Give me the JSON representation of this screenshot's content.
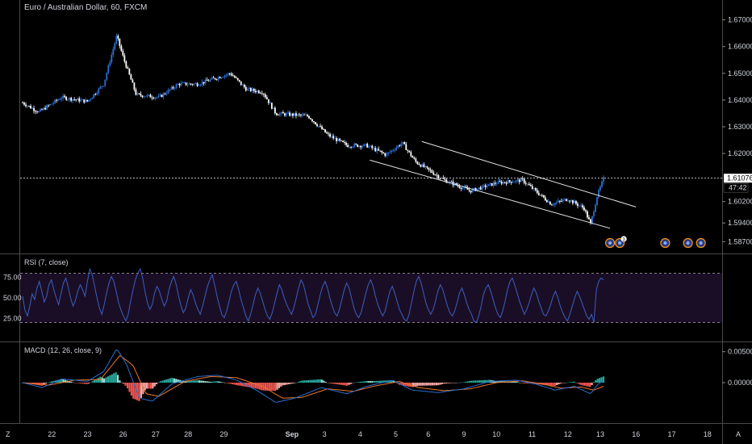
{
  "app": {
    "symbol_title": "Euro / Australian Dollar, 60, FXCM",
    "scale_mark": "Z",
    "auto_mark": "A"
  },
  "colors": {
    "background": "#000000",
    "candle_up": "#2e6fd8",
    "candle_down": "#ffffff",
    "trendline": "#e6e6e6",
    "rsi_line": "#3c5fbf",
    "rsi_band": "#1a0e26",
    "macd_line": "#2a6fd0",
    "signal_line": "#f0782a",
    "hist_pos": "#26a69a",
    "hist_pos_light": "#9be0d5",
    "hist_neg": "#ef5350",
    "hist_neg_light": "#f7a9a6",
    "grid_pane_separator": "#4a4a4a",
    "price_label_bg": "#ffffff"
  },
  "chart_data": [
    {
      "type": "candlestick",
      "name": "price",
      "ylim": [
        1.585,
        1.672
      ],
      "y_ticks": [
        "1.67000",
        "1.66000",
        "1.65000",
        "1.64000",
        "1.63000",
        "1.62000",
        "1.60200",
        "1.59400",
        "1.58700"
      ],
      "current_price": "1.61076",
      "countdown": "47:42",
      "anchors": [
        {
          "t": 0,
          "p": 1.639
        },
        {
          "t": 0.025,
          "p": 1.6355
        },
        {
          "t": 0.06,
          "p": 1.641
        },
        {
          "t": 0.1,
          "p": 1.6395
        },
        {
          "t": 0.125,
          "p": 1.646
        },
        {
          "t": 0.145,
          "p": 1.664
        },
        {
          "t": 0.155,
          "p": 1.656
        },
        {
          "t": 0.175,
          "p": 1.642
        },
        {
          "t": 0.21,
          "p": 1.641
        },
        {
          "t": 0.24,
          "p": 1.646
        },
        {
          "t": 0.27,
          "p": 1.646
        },
        {
          "t": 0.32,
          "p": 1.65
        },
        {
          "t": 0.345,
          "p": 1.644
        },
        {
          "t": 0.37,
          "p": 1.643
        },
        {
          "t": 0.39,
          "p": 1.635
        },
        {
          "t": 0.44,
          "p": 1.634
        },
        {
          "t": 0.47,
          "p": 1.627
        },
        {
          "t": 0.5,
          "p": 1.623
        },
        {
          "t": 0.53,
          "p": 1.623
        },
        {
          "t": 0.56,
          "p": 1.6195
        },
        {
          "t": 0.585,
          "p": 1.624
        },
        {
          "t": 0.605,
          "p": 1.617
        },
        {
          "t": 0.65,
          "p": 1.61
        },
        {
          "t": 0.69,
          "p": 1.606
        },
        {
          "t": 0.73,
          "p": 1.609
        },
        {
          "t": 0.77,
          "p": 1.61
        },
        {
          "t": 0.79,
          "p": 1.606
        },
        {
          "t": 0.815,
          "p": 1.601
        },
        {
          "t": 0.84,
          "p": 1.603
        },
        {
          "t": 0.865,
          "p": 1.5995
        },
        {
          "t": 0.875,
          "p": 1.5935
        },
        {
          "t": 0.885,
          "p": 1.604
        },
        {
          "t": 0.895,
          "p": 1.6105
        }
      ],
      "channel": {
        "upper": [
          [
            0.615,
            1.6245
          ],
          [
            0.945,
            1.6
          ]
        ],
        "lower": [
          [
            0.535,
            1.6175
          ],
          [
            0.905,
            1.592
          ]
        ]
      },
      "events": [
        {
          "t": 0.905,
          "badge": ""
        },
        {
          "t": 0.92,
          "badge": "3"
        },
        {
          "t": 0.99,
          "badge": ""
        },
        {
          "t": 1.025,
          "badge": ""
        },
        {
          "t": 1.045,
          "badge": ""
        }
      ]
    },
    {
      "type": "line",
      "name": "RSI (7, close)",
      "ylim": [
        0,
        100
      ],
      "y_ticks": [
        "75.00",
        "50.00",
        "25.00"
      ],
      "band": [
        20,
        80
      ],
      "series": [
        {
          "name": "RSI (7, close)",
          "values": [
            52,
            35,
            28,
            40,
            55,
            48,
            62,
            70,
            58,
            45,
            52,
            66,
            72,
            60,
            50,
            42,
            55,
            68,
            74,
            63,
            50,
            40,
            47,
            58,
            66,
            60,
            52,
            70,
            85,
            78,
            64,
            50,
            38,
            30,
            42,
            56,
            68,
            76,
            70,
            58,
            44,
            35,
            28,
            22,
            30,
            46,
            60,
            72,
            80,
            85,
            74,
            58,
            44,
            36,
            42,
            56,
            64,
            58,
            48,
            40,
            46,
            60,
            70,
            76,
            66,
            52,
            40,
            32,
            38,
            50,
            60,
            54,
            44,
            36,
            30,
            40,
            52,
            64,
            72,
            78,
            66,
            52,
            40,
            30,
            26,
            34,
            46,
            58,
            66,
            70,
            60,
            48,
            38,
            28,
            22,
            30,
            42,
            54,
            62,
            56,
            46,
            36,
            28,
            24,
            32,
            44,
            56,
            66,
            60,
            50,
            42,
            36,
            30,
            38,
            50,
            62,
            72,
            66,
            54,
            42,
            34,
            26,
            30,
            42,
            54,
            64,
            70,
            62,
            50,
            40,
            32,
            28,
            36,
            48,
            60,
            68,
            62,
            50,
            38,
            30,
            26,
            32,
            44,
            56,
            66,
            72,
            64,
            52,
            42,
            34,
            28,
            34,
            46,
            58,
            64,
            56,
            46,
            36,
            30,
            24,
            22,
            30,
            44,
            58,
            70,
            76,
            68,
            56,
            44,
            36,
            30,
            36,
            46,
            58,
            66,
            60,
            50,
            40,
            32,
            28,
            34,
            44,
            56,
            62,
            54,
            44,
            36,
            30,
            22,
            20,
            28,
            40,
            54,
            62,
            66,
            58,
            48,
            38,
            30,
            26,
            34,
            46,
            60,
            70,
            74,
            66,
            56,
            46,
            38,
            30,
            36,
            44,
            54,
            62,
            56,
            46,
            38,
            30,
            28,
            34,
            42,
            52,
            58,
            50,
            40,
            32,
            26,
            22,
            30,
            40,
            50,
            58,
            52,
            44,
            36,
            28,
            24,
            30,
            20,
            60,
            70,
            74,
            72
          ]
        }
      ]
    },
    {
      "type": "line",
      "name": "MACD (12, 26, close, 9)",
      "ylim": [
        -0.006,
        0.006
      ],
      "y_ticks": [
        "0.00500",
        "0.00000"
      ],
      "series": [
        {
          "name": "MACD",
          "anchors": [
            {
              "t": 0,
              "v": 0.0
            },
            {
              "t": 0.03,
              "v": -0.0008
            },
            {
              "t": 0.06,
              "v": 0.0006
            },
            {
              "t": 0.1,
              "v": 0.0002
            },
            {
              "t": 0.125,
              "v": 0.0018
            },
            {
              "t": 0.145,
              "v": 0.0055
            },
            {
              "t": 0.16,
              "v": 0.003
            },
            {
              "t": 0.18,
              "v": -0.0025
            },
            {
              "t": 0.2,
              "v": -0.003
            },
            {
              "t": 0.23,
              "v": -0.0002
            },
            {
              "t": 0.27,
              "v": 0.001
            },
            {
              "t": 0.3,
              "v": 0.0012
            },
            {
              "t": 0.33,
              "v": 0.0004
            },
            {
              "t": 0.36,
              "v": -0.0012
            },
            {
              "t": 0.39,
              "v": -0.0032
            },
            {
              "t": 0.42,
              "v": -0.0025
            },
            {
              "t": 0.46,
              "v": -0.0008
            },
            {
              "t": 0.5,
              "v": -0.0018
            },
            {
              "t": 0.53,
              "v": -0.0006
            },
            {
              "t": 0.57,
              "v": 0.0004
            },
            {
              "t": 0.6,
              "v": -0.0012
            },
            {
              "t": 0.64,
              "v": -0.0016
            },
            {
              "t": 0.68,
              "v": -0.001
            },
            {
              "t": 0.72,
              "v": 0.0002
            },
            {
              "t": 0.76,
              "v": 0.0004
            },
            {
              "t": 0.79,
              "v": -0.0002
            },
            {
              "t": 0.82,
              "v": -0.0012
            },
            {
              "t": 0.85,
              "v": -0.0006
            },
            {
              "t": 0.875,
              "v": -0.0018
            },
            {
              "t": 0.885,
              "v": -0.0004
            },
            {
              "t": 0.895,
              "v": 0.0004
            }
          ]
        },
        {
          "name": "Signal",
          "anchors": [
            {
              "t": 0,
              "v": 0.0
            },
            {
              "t": 0.04,
              "v": -0.0004
            },
            {
              "t": 0.08,
              "v": 0.0004
            },
            {
              "t": 0.12,
              "v": 0.0005
            },
            {
              "t": 0.15,
              "v": 0.0044
            },
            {
              "t": 0.17,
              "v": 0.0028
            },
            {
              "t": 0.19,
              "v": -0.0018
            },
            {
              "t": 0.21,
              "v": -0.0022
            },
            {
              "t": 0.25,
              "v": 0.0002
            },
            {
              "t": 0.29,
              "v": 0.001
            },
            {
              "t": 0.33,
              "v": 0.0008
            },
            {
              "t": 0.37,
              "v": -0.0006
            },
            {
              "t": 0.4,
              "v": -0.0025
            },
            {
              "t": 0.43,
              "v": -0.0024
            },
            {
              "t": 0.47,
              "v": -0.001
            },
            {
              "t": 0.51,
              "v": -0.0014
            },
            {
              "t": 0.54,
              "v": -0.0006
            },
            {
              "t": 0.58,
              "v": 0.0002
            },
            {
              "t": 0.61,
              "v": -0.0008
            },
            {
              "t": 0.65,
              "v": -0.0013
            },
            {
              "t": 0.69,
              "v": -0.001
            },
            {
              "t": 0.73,
              "v": 0.0
            },
            {
              "t": 0.77,
              "v": 0.0003
            },
            {
              "t": 0.8,
              "v": -0.0002
            },
            {
              "t": 0.83,
              "v": -0.0009
            },
            {
              "t": 0.86,
              "v": -0.0007
            },
            {
              "t": 0.88,
              "v": -0.0012
            },
            {
              "t": 0.895,
              "v": -0.0006
            }
          ]
        }
      ]
    }
  ],
  "x_axis": {
    "labels": [
      "22",
      "23",
      "26",
      "27",
      "28",
      "29",
      "Sep",
      "3",
      "4",
      "5",
      "6",
      "9",
      "10",
      "11",
      "12",
      "13",
      "16",
      "17",
      "18"
    ],
    "bold": [
      "Sep"
    ],
    "t": [
      0.045,
      0.1,
      0.155,
      0.205,
      0.255,
      0.31,
      0.415,
      0.465,
      0.52,
      0.575,
      0.625,
      0.68,
      0.73,
      0.785,
      0.84,
      0.89,
      0.945,
      1.0,
      1.055
    ]
  }
}
